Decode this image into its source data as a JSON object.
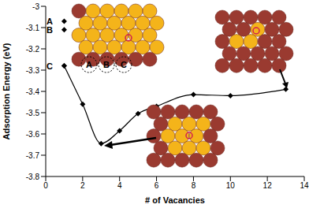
{
  "chart_data": {
    "type": "line",
    "x_label": "# of Vacancies",
    "y_label": "Adsorption Energy (eV)",
    "x": [
      1,
      2,
      3,
      4,
      5,
      6,
      8,
      10,
      13
    ],
    "values": [
      -3.28,
      -3.46,
      -3.645,
      -3.585,
      -3.505,
      -3.47,
      -3.415,
      -3.42,
      -3.39
    ],
    "color": "#000000",
    "marker": "diamond",
    "xlim": [
      0,
      14
    ],
    "xticks": [
      0,
      2,
      4,
      6,
      8,
      10,
      12,
      14
    ],
    "ylim": [
      -3.8,
      -3
    ],
    "yticks": [
      -3.8,
      -3.7,
      -3.6,
      -3.5,
      -3.4,
      -3.3,
      -3.2,
      -3.1,
      -3
    ],
    "annotations": [
      {
        "label": "A",
        "x": 1,
        "y": -3.07
      },
      {
        "label": "B",
        "x": 1,
        "y": -3.11
      },
      {
        "label": "C",
        "x": 1,
        "y": -3.28
      }
    ],
    "inset_labels": [
      "A",
      "B",
      "C"
    ]
  }
}
